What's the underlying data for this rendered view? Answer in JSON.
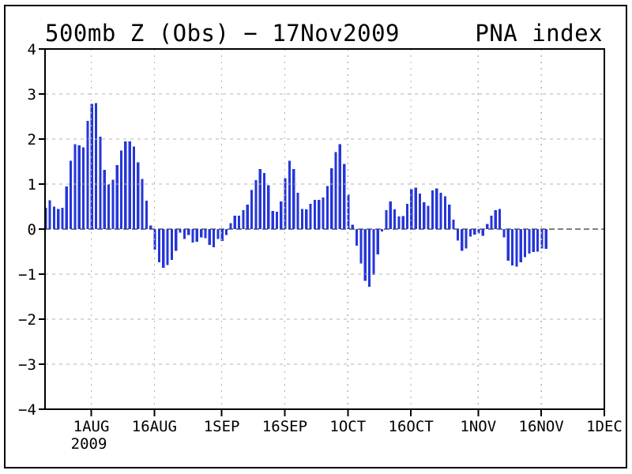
{
  "page": {
    "background": "#ffffff",
    "border_color": "#000000"
  },
  "header": {
    "title_left": "500mb Z (Obs) − 17Nov2009",
    "title_right": "PNA index"
  },
  "chart_data": {
    "type": "bar",
    "title": "500mb Z (Obs) − 17Nov2009",
    "right_label": "PNA index",
    "ylabel": "",
    "xlabel": "",
    "ylim": [
      -4,
      4
    ],
    "grid": true,
    "legend_position": "none",
    "bar_color": "#2536d8",
    "grid_color": "#b3b3b3",
    "axis_color": "#000000",
    "y_ticks": [
      {
        "label": "4",
        "value": 4
      },
      {
        "label": "3",
        "value": 3
      },
      {
        "label": "2",
        "value": 2
      },
      {
        "label": "1",
        "value": 1
      },
      {
        "label": "0",
        "value": 0
      },
      {
        "label": "−1",
        "value": -1
      },
      {
        "label": "−2",
        "value": -2
      },
      {
        "label": "−3",
        "value": -3
      },
      {
        "label": "−4",
        "value": -4
      }
    ],
    "x_span_days": 133,
    "x_start": "21JUL2009",
    "x_end_of_data": "17NOV2009",
    "x_ticks": [
      {
        "label": "1AUG",
        "sublabel": "2009",
        "day": 11
      },
      {
        "label": "16AUG",
        "day": 26
      },
      {
        "label": "1SEP",
        "day": 42
      },
      {
        "label": "16SEP",
        "day": 57
      },
      {
        "label": "1OCT",
        "day": 72
      },
      {
        "label": "16OCT",
        "day": 87
      },
      {
        "label": "1NOV",
        "day": 103
      },
      {
        "label": "16NOV",
        "day": 118
      },
      {
        "label": "1DEC",
        "day": 133
      }
    ],
    "values": [
      0.47,
      0.64,
      0.5,
      0.45,
      0.47,
      0.95,
      1.52,
      1.89,
      1.86,
      1.82,
      2.4,
      2.78,
      2.8,
      2.05,
      1.32,
      0.99,
      1.1,
      1.42,
      1.75,
      1.95,
      1.95,
      1.83,
      1.48,
      1.11,
      0.63,
      0.08,
      -0.46,
      -0.74,
      -0.86,
      -0.8,
      -0.68,
      -0.48,
      -0.08,
      -0.22,
      -0.13,
      -0.3,
      -0.28,
      -0.18,
      -0.2,
      -0.35,
      -0.4,
      -0.22,
      -0.26,
      -0.13,
      0.13,
      0.3,
      0.3,
      0.42,
      0.54,
      0.87,
      1.09,
      1.33,
      1.25,
      0.97,
      0.4,
      0.39,
      0.61,
      1.13,
      1.52,
      1.33,
      0.81,
      0.45,
      0.44,
      0.56,
      0.65,
      0.65,
      0.7,
      0.96,
      1.35,
      1.71,
      1.89,
      1.45,
      0.77,
      0.1,
      -0.37,
      -0.76,
      -1.15,
      -1.28,
      -1.02,
      -0.56,
      -0.05,
      0.42,
      0.61,
      0.44,
      0.28,
      0.29,
      0.56,
      0.89,
      0.92,
      0.79,
      0.6,
      0.52,
      0.86,
      0.9,
      0.81,
      0.73,
      0.54,
      0.21,
      -0.25,
      -0.48,
      -0.43,
      -0.17,
      -0.12,
      -0.1,
      -0.15,
      0.11,
      0.3,
      0.42,
      0.45,
      -0.18,
      -0.7,
      -0.81,
      -0.83,
      -0.74,
      -0.62,
      -0.54,
      -0.51,
      -0.5,
      -0.43,
      -0.44
    ]
  }
}
